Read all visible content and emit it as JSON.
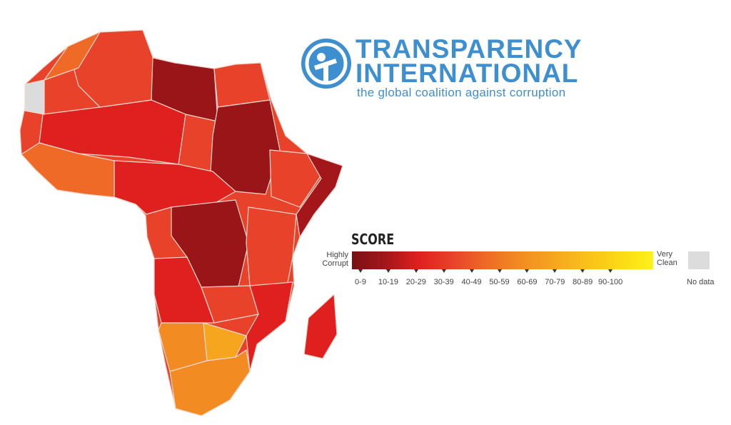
{
  "logo": {
    "line1": "TRANSPARENCY",
    "line2": "INTERNATIONAL",
    "tagline": "the global coalition against corruption",
    "color": "#3d8fcf"
  },
  "legend": {
    "title": "SCORE",
    "left_label": [
      "Highly",
      "Corrupt"
    ],
    "right_label": [
      "Very",
      "Clean"
    ],
    "ranges": [
      "0-9",
      "10-19",
      "20-29",
      "30-39",
      "40-49",
      "50-59",
      "60-69",
      "70-79",
      "80-89",
      "90-100"
    ],
    "colors": [
      "#7a1014",
      "#a3161a",
      "#e0201e",
      "#e8432a",
      "#ee6a26",
      "#f28b22",
      "#f6a51f",
      "#f9c01a",
      "#fbd915",
      "#fdf21a"
    ],
    "no_data_label": "No data",
    "no_data_color": "#dcdcdc"
  },
  "map": {
    "region": "Africa",
    "border_color": "#f3d6cf"
  }
}
